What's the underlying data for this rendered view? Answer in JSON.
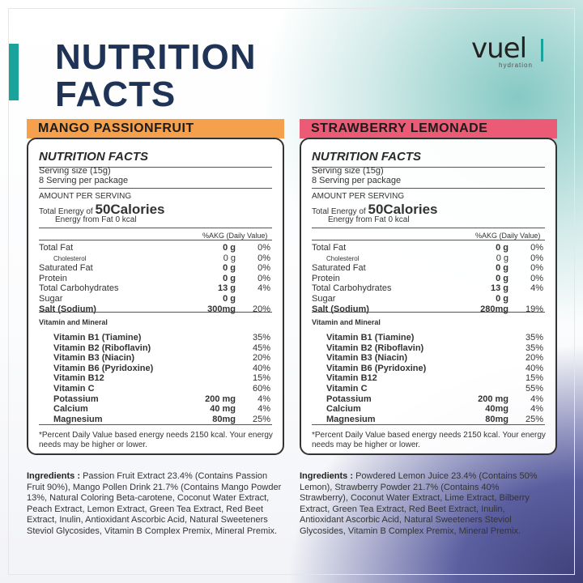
{
  "header": {
    "title_line1": "NUTRITION",
    "title_line2": "FACTS",
    "logo_text": "vuel",
    "logo_subtext": "hydration"
  },
  "colors": {
    "mango_banner": "#f5a04c",
    "strawberry_banner": "#ec5b76",
    "title": "#1f3357",
    "accent": "#1aa39a"
  },
  "products": [
    {
      "name": "MANGO PASSIONFRUIT",
      "label_title": "NUTRITION FACTS",
      "serving_size": "Serving size (15g)",
      "servings": "8 Serving per package",
      "amount_per_serving": "AMOUNT PER SERVING",
      "energy_prefix": "Total Energy of",
      "energy_value": "50Calories",
      "energy_fat": "Energy from Fat 0 kcal",
      "dv_header": "%AKG (Daily Value)",
      "nutrients": [
        {
          "name": "Total Fat",
          "amount": "0 g",
          "pct": "0%"
        },
        {
          "name": "Cholesterol",
          "amount": "0 g",
          "pct": "0%"
        },
        {
          "name": "Saturated Fat",
          "amount": "0 g",
          "pct": "0%"
        },
        {
          "name": "Protein",
          "amount": "0 g",
          "pct": "0%"
        },
        {
          "name": "Total Carbohydrates",
          "amount": "13 g",
          "pct": "4%"
        },
        {
          "name": "Sugar",
          "amount": "0 g",
          "pct": ""
        },
        {
          "name": "Salt (Sodium)",
          "amount": "300mg",
          "pct": "20%"
        }
      ],
      "vitamin_title": "Vitamin and Mineral",
      "vitamins": [
        {
          "name": "Vitamin B1 (Tiamine)",
          "amount": "",
          "pct": "35%"
        },
        {
          "name": "Vitamin B2 (Riboflavin)",
          "amount": "",
          "pct": "45%"
        },
        {
          "name": "Vitamin B3 (Niacin)",
          "amount": "",
          "pct": "20%"
        },
        {
          "name": "Vitamin B6 (Pyridoxine)",
          "amount": "",
          "pct": "40%"
        },
        {
          "name": "Vitamin B12",
          "amount": "",
          "pct": "15%"
        },
        {
          "name": "Vitamin C",
          "amount": "",
          "pct": "60%"
        },
        {
          "name": "Potassium",
          "amount": "200 mg",
          "pct": "4%"
        },
        {
          "name": "Calcium",
          "amount": "40 mg",
          "pct": "4%"
        },
        {
          "name": "Magnesium",
          "amount": "80mg",
          "pct": "25%"
        }
      ],
      "footnote": "*Percent Daily Value based energy needs 2150 kcal. Your energy needs may be higher or lower.",
      "ingredients_label": "Ingredients :",
      "ingredients": "Passion Fruit Extract 23.4% (Contains Passion Fruit 90%), Mango Pollen Drink 21.7% (Contains Mango Powder 13%, Natural Coloring Beta-carotene, Coconut Water Extract, Peach Extract, Lemon Extract, Green Tea Extract, Red Beet Extract, Inulin, Antioxidant Ascorbic Acid, Natural Sweeteners Steviol Glycosides, Vitamin B Complex Premix, Mineral Premix."
    },
    {
      "name": "STRAWBERRY LEMONADE",
      "label_title": "NUTRITION FACTS",
      "serving_size": "Serving size (15g)",
      "servings": "8 Serving per package",
      "amount_per_serving": "AMOUNT PER SERVING",
      "energy_prefix": "Total Energy of",
      "energy_value": "50Calories",
      "energy_fat": "Energy from Fat 0 kcal",
      "dv_header": "%AKG (Daily Value)",
      "nutrients": [
        {
          "name": "Total Fat",
          "amount": "0 g",
          "pct": "0%"
        },
        {
          "name": "Cholesterol",
          "amount": "0 g",
          "pct": "0%"
        },
        {
          "name": "Saturated Fat",
          "amount": "0 g",
          "pct": "0%"
        },
        {
          "name": "Protein",
          "amount": "0 g",
          "pct": "0%"
        },
        {
          "name": "Total Carbohydrates",
          "amount": "13 g",
          "pct": "4%"
        },
        {
          "name": "Sugar",
          "amount": "0 g",
          "pct": ""
        },
        {
          "name": "Salt (Sodium)",
          "amount": "280mg",
          "pct": "19%"
        }
      ],
      "vitamin_title": "Vitamin and Mineral",
      "vitamins": [
        {
          "name": "Vitamin B1 (Tiamine)",
          "amount": "",
          "pct": "35%"
        },
        {
          "name": "Vitamin B2 (Riboflavin)",
          "amount": "",
          "pct": "35%"
        },
        {
          "name": "Vitamin B3 (Niacin)",
          "amount": "",
          "pct": "20%"
        },
        {
          "name": "Vitamin B6 (Pyridoxine)",
          "amount": "",
          "pct": "40%"
        },
        {
          "name": "Vitamin B12",
          "amount": "",
          "pct": "15%"
        },
        {
          "name": "Vitamin C",
          "amount": "",
          "pct": "55%"
        },
        {
          "name": "Potassium",
          "amount": "200 mg",
          "pct": "4%"
        },
        {
          "name": "Calcium",
          "amount": "40mg",
          "pct": "4%"
        },
        {
          "name": "Magnesium",
          "amount": "80mg",
          "pct": "25%"
        }
      ],
      "footnote": "*Percent Daily Value based energy needs 2150 kcal. Your energy needs may be higher or lower.",
      "ingredients_label": "Ingredients :",
      "ingredients": "Powdered Lemon Juice 23.4% (Contains 50% Lemon), Strawberry Powder 21.7% (Contains 40% Strawberry), Coconut Water Extract, Lime Extract, Bilberry Extract, Green Tea Extract, Red Beet Extract, Inulin, Antioxidant Ascorbic Acid, Natural Sweeteners Steviol Glycosides, Vitamin B Complex Premix, Mineral Premix."
    }
  ]
}
